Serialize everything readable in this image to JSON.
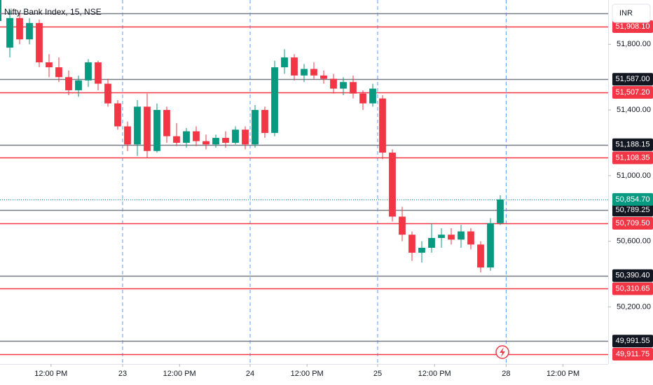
{
  "chart_data": {
    "type": "candlestick",
    "title": "Nifty Bank Index, 15, NSE",
    "currency": "INR",
    "up_color": "#089981",
    "down_color": "#f23645",
    "xlim": [
      0,
      62
    ],
    "ylim": [
      49852,
      52070
    ],
    "xticks": [
      {
        "value": 5.2,
        "label": "12:00 PM"
      },
      {
        "value": 12.5,
        "label": "23"
      },
      {
        "value": 18.3,
        "label": "12:00 PM"
      },
      {
        "value": 25.5,
        "label": "24"
      },
      {
        "value": 31.3,
        "label": "12:00 PM"
      },
      {
        "value": 38.5,
        "label": "25"
      },
      {
        "value": 44.3,
        "label": "12:00 PM"
      },
      {
        "value": 51.6,
        "label": "28"
      },
      {
        "value": 57.4,
        "label": "12:00 PM"
      }
    ],
    "yticks": [
      {
        "value": 50200,
        "label": "50,200.00"
      },
      {
        "value": 50600,
        "label": "50,600.00"
      },
      {
        "value": 51000,
        "label": "51,000.00"
      },
      {
        "value": 51400,
        "label": "51,400.00"
      },
      {
        "value": 51800,
        "label": "51,800.00"
      }
    ],
    "x": [
      1,
      2,
      3,
      4,
      5,
      6,
      7,
      8,
      9,
      10,
      11,
      12,
      13,
      14,
      15,
      16,
      17,
      18,
      19,
      20,
      21,
      22,
      23,
      24,
      25,
      26,
      27,
      28,
      29,
      30,
      31,
      32,
      33,
      34,
      35,
      36,
      37,
      38,
      39,
      40,
      41,
      42,
      43,
      44,
      45,
      46,
      47,
      48,
      49,
      50,
      51
    ],
    "open": [
      51780,
      51960,
      51830,
      51930,
      51690,
      51660,
      51600,
      51520,
      51580,
      51690,
      51560,
      51440,
      51300,
      51190,
      51420,
      51150,
      51400,
      51240,
      51200,
      51270,
      51210,
      51190,
      51230,
      51200,
      51280,
      51190,
      51400,
      51260,
      51660,
      51720,
      51610,
      51650,
      51610,
      51590,
      51530,
      51570,
      51500,
      51440,
      51470,
      51140,
      50750,
      50640,
      50530,
      50560,
      50620,
      50640,
      50610,
      50660,
      50580,
      50440,
      50710
    ],
    "high": [
      52010,
      51990,
      51960,
      51950,
      51740,
      51720,
      51640,
      51610,
      51710,
      51700,
      51590,
      51460,
      51330,
      51460,
      51500,
      51440,
      51420,
      51320,
      51290,
      51300,
      51250,
      51250,
      51270,
      51300,
      51300,
      51430,
      51420,
      51700,
      51770,
      51740,
      51680,
      51690,
      51640,
      51620,
      51600,
      51610,
      51520,
      51560,
      51490,
      51160,
      50810,
      50660,
      50600,
      50710,
      50680,
      50680,
      50700,
      50680,
      50600,
      50740,
      50880
    ],
    "low": [
      51720,
      51800,
      51800,
      51660,
      51600,
      51570,
      51490,
      51480,
      51540,
      51520,
      51420,
      51280,
      51150,
      51120,
      51110,
      51140,
      51200,
      51180,
      51170,
      51180,
      51160,
      51170,
      51170,
      51190,
      51160,
      51170,
      51230,
      51240,
      51620,
      51580,
      51570,
      51590,
      51560,
      51500,
      51490,
      51470,
      51400,
      51420,
      51100,
      50720,
      50600,
      50480,
      50470,
      50530,
      50560,
      50580,
      50560,
      50550,
      50410,
      50420,
      50700
    ],
    "close": [
      51960,
      51830,
      51930,
      51690,
      51660,
      51600,
      51520,
      51580,
      51690,
      51560,
      51440,
      51300,
      51190,
      51420,
      51150,
      51400,
      51240,
      51200,
      51270,
      51210,
      51190,
      51230,
      51200,
      51280,
      51190,
      51400,
      51260,
      51660,
      51720,
      51610,
      51650,
      51610,
      51590,
      51530,
      51570,
      51500,
      51440,
      51530,
      51140,
      50750,
      50640,
      50530,
      50560,
      50620,
      50640,
      50610,
      50660,
      50580,
      50440,
      50710,
      50855
    ],
    "levels": [
      {
        "value": 51987.9,
        "color": "#787b86"
      },
      {
        "value": 51908.1,
        "label": "51,908.10",
        "color": "#f23645"
      },
      {
        "value": 51587.0,
        "label": "51,587.00",
        "color": "#787b86"
      },
      {
        "value": 51507.2,
        "label": "51,507.20",
        "color": "#f23645"
      },
      {
        "value": 51188.15,
        "label": "51,188.15",
        "color": "#787b86"
      },
      {
        "value": 51108.35,
        "label": "51,108.35",
        "color": "#f23645"
      },
      {
        "value": 50789.25,
        "label": "50,789.25",
        "color": "#787b86"
      },
      {
        "value": 50709.5,
        "label": "50,709.50",
        "color": "#f23645"
      },
      {
        "value": 50390.4,
        "label": "50,390.40",
        "color": "#787b86"
      },
      {
        "value": 50310.65,
        "label": "50,310.65",
        "color": "#f23645"
      },
      {
        "value": 49991.55,
        "label": "49,991.55",
        "color": "#787b86"
      },
      {
        "value": 49911.75,
        "label": "49,911.75",
        "color": "#f23645"
      }
    ],
    "last_price": {
      "value": 50854.7,
      "label": "50,854.70",
      "color": "#089981"
    }
  }
}
